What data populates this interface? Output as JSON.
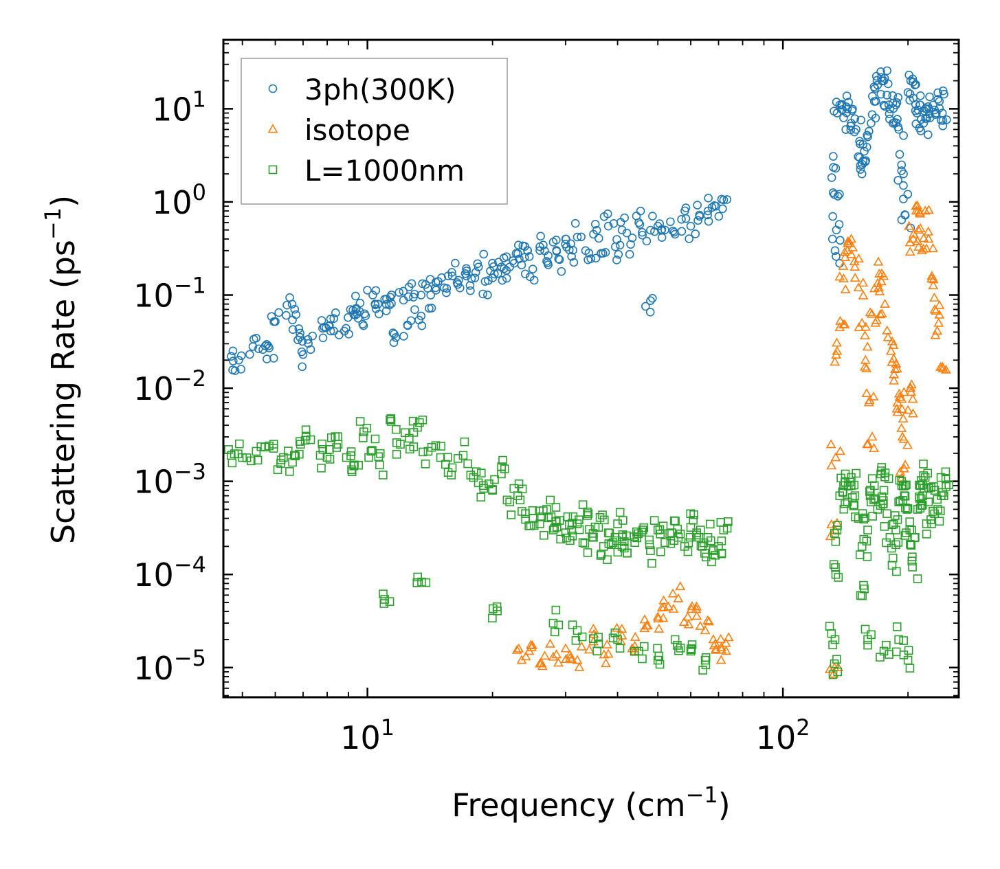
{
  "chart_data": {
    "type": "scatter",
    "xscale": "log",
    "yscale": "log",
    "xlabel": "Frequency (cm",
    "xlabel_sup": "−1",
    "xlabel_end": ")",
    "ylabel": "Scattering Rate (ps",
    "ylabel_sup": "−1",
    "ylabel_end": ")",
    "xlim": [
      4.5,
      265
    ],
    "ylim": [
      4.8e-06,
      55
    ],
    "x_ticks": [
      {
        "value": 10,
        "base": "10",
        "exp": "1"
      },
      {
        "value": 100,
        "base": "10",
        "exp": "2"
      }
    ],
    "y_ticks": [
      {
        "value": 10,
        "base": "10",
        "exp": "1"
      },
      {
        "value": 1,
        "base": "10",
        "exp": "0"
      },
      {
        "value": 0.1,
        "base": "10",
        "exp": "−1"
      },
      {
        "value": 0.01,
        "base": "10",
        "exp": "−2"
      },
      {
        "value": 0.001,
        "base": "10",
        "exp": "−3"
      },
      {
        "value": 0.0001,
        "base": "10",
        "exp": "−4"
      },
      {
        "value": 1e-05,
        "base": "10",
        "exp": "−5"
      }
    ],
    "legend_position": "top-left",
    "series": [
      {
        "name": "3ph(300K)",
        "marker": "circle",
        "color": "#1f77b4",
        "points": [
          [
            4.7,
            0.022
          ],
          [
            4.9,
            0.02
          ],
          [
            5.3,
            0.028
          ],
          [
            5.6,
            0.026
          ],
          [
            5.8,
            0.027
          ],
          [
            6.0,
            0.052
          ],
          [
            6.4,
            0.078
          ],
          [
            6.6,
            0.054
          ],
          [
            6.8,
            0.033
          ],
          [
            7.0,
            0.023
          ],
          [
            7.3,
            0.026
          ],
          [
            7.8,
            0.044
          ],
          [
            8.1,
            0.047
          ],
          [
            8.3,
            0.056
          ],
          [
            8.8,
            0.041
          ],
          [
            9.1,
            0.07
          ],
          [
            9.4,
            0.072
          ],
          [
            9.6,
            0.082
          ],
          [
            9.9,
            0.06
          ],
          [
            10.3,
            0.1
          ],
          [
            10.6,
            0.08
          ],
          [
            11.0,
            0.09
          ],
          [
            11.3,
            0.078
          ],
          [
            11.7,
            0.035
          ],
          [
            12.2,
            0.11
          ],
          [
            12.5,
            0.047
          ],
          [
            12.9,
            0.095
          ],
          [
            13.3,
            0.054
          ],
          [
            13.8,
            0.13
          ],
          [
            14.2,
            0.1
          ],
          [
            14.8,
            0.14
          ],
          [
            15.3,
            0.12
          ],
          [
            16.0,
            0.16
          ],
          [
            16.5,
            0.13
          ],
          [
            17.2,
            0.17
          ],
          [
            17.8,
            0.15
          ],
          [
            18.5,
            0.2
          ],
          [
            19.2,
            0.14
          ],
          [
            20.0,
            0.22
          ],
          [
            20.6,
            0.17
          ],
          [
            21.3,
            0.25
          ],
          [
            22.0,
            0.2
          ],
          [
            22.8,
            0.28
          ],
          [
            23.5,
            0.21
          ],
          [
            24.3,
            0.3
          ],
          [
            25.0,
            0.19
          ],
          [
            26.0,
            0.33
          ],
          [
            27.0,
            0.23
          ],
          [
            28.0,
            0.37
          ],
          [
            29.0,
            0.24
          ],
          [
            30.0,
            0.4
          ],
          [
            31.0,
            0.26
          ],
          [
            32.0,
            0.42
          ],
          [
            33.5,
            0.3
          ],
          [
            35.0,
            0.45
          ],
          [
            36.5,
            0.28
          ],
          [
            38.0,
            0.55
          ],
          [
            39.5,
            0.33
          ],
          [
            41.0,
            0.5
          ],
          [
            43.0,
            0.35
          ],
          [
            45.0,
            0.6
          ],
          [
            47.0,
            0.38
          ],
          [
            48.0,
            0.087
          ],
          [
            50.0,
            0.55
          ],
          [
            52.0,
            0.5
          ],
          [
            55.0,
            0.45
          ],
          [
            57.0,
            0.65
          ],
          [
            60.0,
            0.55
          ],
          [
            63.0,
            0.7
          ],
          [
            66.0,
            0.8
          ],
          [
            69.0,
            0.9
          ],
          [
            72.0,
            1.05
          ],
          [
            133,
            1.2
          ],
          [
            133.5,
            0.3
          ],
          [
            134,
            2.3
          ],
          [
            134.5,
            0.5
          ],
          [
            135,
            9
          ],
          [
            137,
            11
          ],
          [
            140,
            8
          ],
          [
            143,
            10
          ],
          [
            146,
            7
          ],
          [
            150,
            6
          ],
          [
            153,
            3
          ],
          [
            155,
            2
          ],
          [
            157,
            3.5
          ],
          [
            160,
            5
          ],
          [
            163,
            7
          ],
          [
            166,
            12
          ],
          [
            169,
            18
          ],
          [
            172,
            25
          ],
          [
            175,
            20
          ],
          [
            178,
            14
          ],
          [
            181,
            10
          ],
          [
            184,
            7
          ],
          [
            187,
            11
          ],
          [
            190,
            6
          ],
          [
            193,
            2.5
          ],
          [
            195,
            1.5
          ],
          [
            197,
            0.72
          ],
          [
            200,
            15
          ],
          [
            203,
            20
          ],
          [
            206,
            13
          ],
          [
            210,
            9
          ],
          [
            214,
            11
          ],
          [
            218,
            7
          ],
          [
            222,
            10
          ],
          [
            226,
            8
          ],
          [
            230,
            11
          ],
          [
            234,
            9
          ],
          [
            238,
            12
          ],
          [
            242,
            9
          ]
        ]
      },
      {
        "name": "isotope",
        "marker": "triangle",
        "color": "#ff7f0e",
        "points": [
          [
            23.5,
            1.2e-05
          ],
          [
            24.5,
            1.5e-05
          ],
          [
            26.0,
            1.1e-05
          ],
          [
            28.0,
            1.3e-05
          ],
          [
            30.0,
            1.6e-05
          ],
          [
            32.0,
            1.2e-05
          ],
          [
            35.0,
            1.9e-05
          ],
          [
            38.0,
            1.4e-05
          ],
          [
            41.0,
            2.2e-05
          ],
          [
            44.0,
            1.7e-05
          ],
          [
            47.0,
            2.8e-05
          ],
          [
            50.0,
            3.5e-05
          ],
          [
            53.0,
            4.5e-05
          ],
          [
            56.0,
            5.5e-05
          ],
          [
            59.0,
            3.5e-05
          ],
          [
            62.0,
            4.5e-05
          ],
          [
            65.0,
            2.5e-05
          ],
          [
            68.0,
            2e-05
          ],
          [
            71.0,
            1.2e-05
          ],
          [
            73.0,
            1.5e-05
          ],
          [
            133,
            1e-05
          ],
          [
            133.5,
            0.0003
          ],
          [
            134,
            0.0018
          ],
          [
            135,
            0.025
          ],
          [
            137,
            0.045
          ],
          [
            140,
            0.15
          ],
          [
            143,
            0.3
          ],
          [
            146,
            0.4
          ],
          [
            149,
            0.2
          ],
          [
            152,
            0.12
          ],
          [
            155,
            0.05
          ],
          [
            158,
            0.02
          ],
          [
            161,
            0.007
          ],
          [
            164,
            0.003
          ],
          [
            167,
            0.05
          ],
          [
            170,
            0.12
          ],
          [
            173,
            0.17
          ],
          [
            176,
            0.08
          ],
          [
            179,
            0.035
          ],
          [
            182,
            0.025
          ],
          [
            185,
            0.012
          ],
          [
            188,
            0.006
          ],
          [
            191,
            0.008
          ],
          [
            194,
            0.003
          ],
          [
            197,
            0.0015
          ],
          [
            200,
            0.0058
          ],
          [
            203,
            0.01
          ],
          [
            206,
            0.4
          ],
          [
            209,
            0.9
          ],
          [
            212,
            0.5
          ],
          [
            216,
            0.3
          ],
          [
            220,
            0.8
          ],
          [
            224,
            0.4
          ],
          [
            228,
            0.15
          ],
          [
            232,
            0.07
          ],
          [
            237,
            0.05
          ],
          [
            242,
            0.017
          ]
        ]
      },
      {
        "name": "L=1000nm",
        "marker": "square",
        "color": "#2ca02c",
        "points": [
          [
            4.7,
            0.0019
          ],
          [
            5.0,
            0.0018
          ],
          [
            5.4,
            0.0021
          ],
          [
            5.8,
            0.0024
          ],
          [
            6.2,
            0.0017
          ],
          [
            6.6,
            0.0016
          ],
          [
            6.9,
            0.0025
          ],
          [
            7.3,
            0.0028
          ],
          [
            7.7,
            0.0019
          ],
          [
            8.1,
            0.0022
          ],
          [
            8.5,
            0.0025
          ],
          [
            8.9,
            0.0018
          ],
          [
            9.3,
            0.0015
          ],
          [
            9.8,
            0.0034
          ],
          [
            10.2,
            0.0021
          ],
          [
            10.7,
            0.0015
          ],
          [
            11.0,
            5.4e-05
          ],
          [
            11.4,
            0.0044
          ],
          [
            12.0,
            0.0025
          ],
          [
            12.6,
            0.0029
          ],
          [
            13.2,
            0.0038
          ],
          [
            13.5,
            8.3e-05
          ],
          [
            14.0,
            0.0021
          ],
          [
            15.0,
            0.0018
          ],
          [
            16.0,
            0.0014
          ],
          [
            17.0,
            0.0019
          ],
          [
            18.0,
            0.0011
          ],
          [
            19.0,
            0.0009
          ],
          [
            20.0,
            0.0008
          ],
          [
            20.5,
            4.5e-05
          ],
          [
            21.0,
            0.0012
          ],
          [
            22.0,
            0.0006
          ],
          [
            23.0,
            0.0007
          ],
          [
            24.0,
            0.00045
          ],
          [
            25.0,
            0.0004
          ],
          [
            26.0,
            0.00035
          ],
          [
            27.0,
            0.0005
          ],
          [
            28.0,
            0.0003
          ],
          [
            29.0,
            0.00038
          ],
          [
            30.0,
            0.00028
          ],
          [
            31.0,
            0.0003
          ],
          [
            32.0,
            0.00035
          ],
          [
            33.0,
            0.00022
          ],
          [
            34.0,
            0.00045
          ],
          [
            35.0,
            0.00025
          ],
          [
            36.0,
            0.00032
          ],
          [
            37.0,
            0.0002
          ],
          [
            38.0,
            0.00028
          ],
          [
            39.0,
            0.00022
          ],
          [
            40.0,
            0.00035
          ],
          [
            41.0,
            0.0002
          ],
          [
            42.0,
            0.00026
          ],
          [
            44.0,
            0.00022
          ],
          [
            46.0,
            0.0003
          ],
          [
            48.0,
            0.00018
          ],
          [
            50.0,
            0.0003
          ],
          [
            52.0,
            0.00022
          ],
          [
            54.0,
            0.00028
          ],
          [
            56.0,
            0.00025
          ],
          [
            58.0,
            0.0002
          ],
          [
            60.0,
            0.00032
          ],
          [
            62.0,
            0.00028
          ],
          [
            64.0,
            0.0002
          ],
          [
            66.0,
            0.00025
          ],
          [
            68.0,
            0.00018
          ],
          [
            70.0,
            0.0002
          ],
          [
            72.0,
            0.0003
          ],
          [
            28.0,
            3e-05
          ],
          [
            32.0,
            2.5e-05
          ],
          [
            36.0,
            1.8e-05
          ],
          [
            40.0,
            2e-05
          ],
          [
            45.0,
            1.5e-05
          ],
          [
            50.0,
            1.2e-05
          ],
          [
            55.0,
            2e-05
          ],
          [
            60.0,
            1.5e-05
          ],
          [
            65.0,
            1.2e-05
          ],
          [
            133,
            1.1e-05
          ],
          [
            133.5,
            2e-05
          ],
          [
            134,
            0.0001
          ],
          [
            135,
            0.0003
          ],
          [
            137,
            0.0007
          ],
          [
            140,
            0.0009
          ],
          [
            143,
            0.0006
          ],
          [
            146,
            0.0011
          ],
          [
            149,
            0.0007
          ],
          [
            152,
            0.0004
          ],
          [
            155,
            0.0002
          ],
          [
            157,
            7e-05
          ],
          [
            160,
            0.0003
          ],
          [
            163,
            0.0006
          ],
          [
            166,
            0.0009
          ],
          [
            169,
            0.0005
          ],
          [
            172,
            0.0012
          ],
          [
            175,
            0.0008
          ],
          [
            178,
            0.00045
          ],
          [
            181,
            0.00025
          ],
          [
            184,
            0.00015
          ],
          [
            187,
            0.0003
          ],
          [
            190,
            0.0006
          ],
          [
            193,
            0.001
          ],
          [
            196,
            0.0007
          ],
          [
            199,
            0.0005
          ],
          [
            202,
            0.0003
          ],
          [
            205,
            0.00012
          ],
          [
            208,
            0.00025
          ],
          [
            211,
            0.0005
          ],
          [
            214,
            0.0009
          ],
          [
            217,
            0.0007
          ],
          [
            220,
            0.0011
          ],
          [
            224,
            0.0006
          ],
          [
            228,
            0.00035
          ],
          [
            232,
            0.0008
          ],
          [
            236,
            0.0005
          ],
          [
            240,
            0.0011
          ],
          [
            244,
            0.0007
          ],
          [
            160,
            2e-05
          ],
          [
            175,
            1.5e-05
          ],
          [
            190,
            2e-05
          ],
          [
            200,
            1.2e-05
          ]
        ]
      }
    ]
  }
}
